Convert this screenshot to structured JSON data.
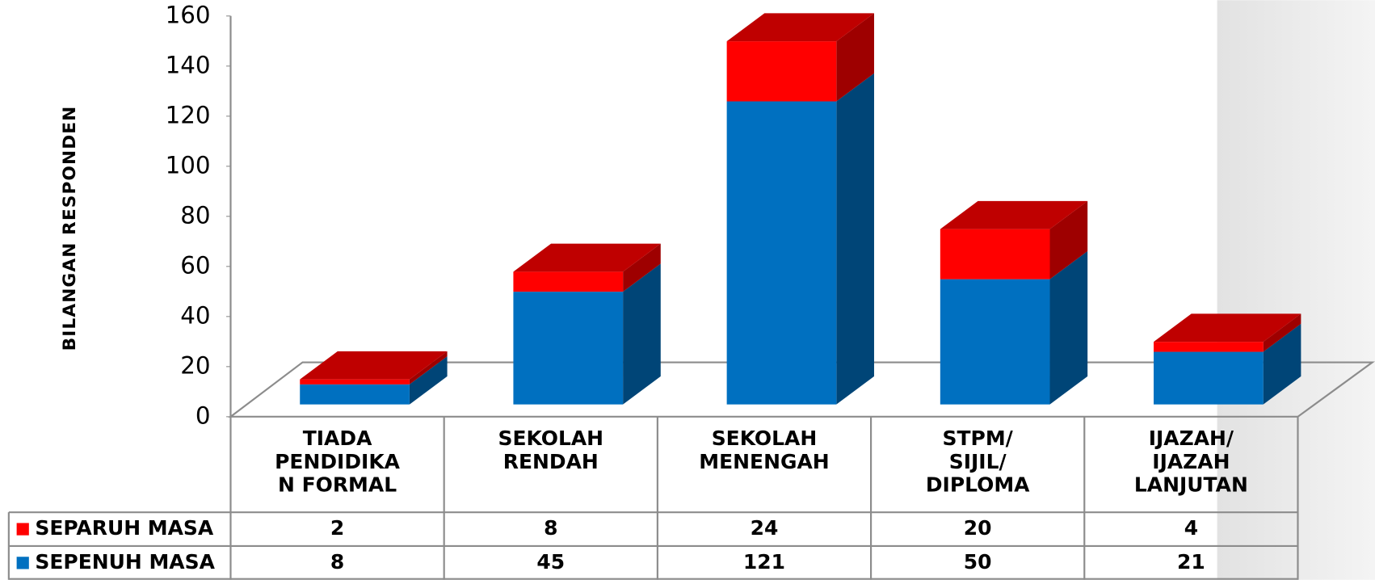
{
  "chart_data": {
    "type": "bar3d_stacked",
    "y_label": "BILANGAN RESPONDEN",
    "categories": [
      "TIADA\nPENDIDIKA\nN FORMAL",
      "SEKOLAH\nRENDAH",
      "SEKOLAH\nMENENGAH",
      "STPM/\nSIJIL/\nDIPLOMA",
      "IJAZAH/\nIJAZAH\nLANJUTAN"
    ],
    "series": [
      {
        "name": "SEPENUH MASA",
        "color": "#0070c0",
        "values": [
          8,
          45,
          121,
          50,
          21
        ]
      },
      {
        "name": "SEPARUH MASA",
        "color": "#ff0000",
        "values": [
          2,
          8,
          24,
          20,
          4
        ]
      }
    ],
    "ylim": [
      0,
      160
    ],
    "yticks": [
      0,
      20,
      40,
      60,
      80,
      100,
      120,
      140,
      160
    ]
  }
}
